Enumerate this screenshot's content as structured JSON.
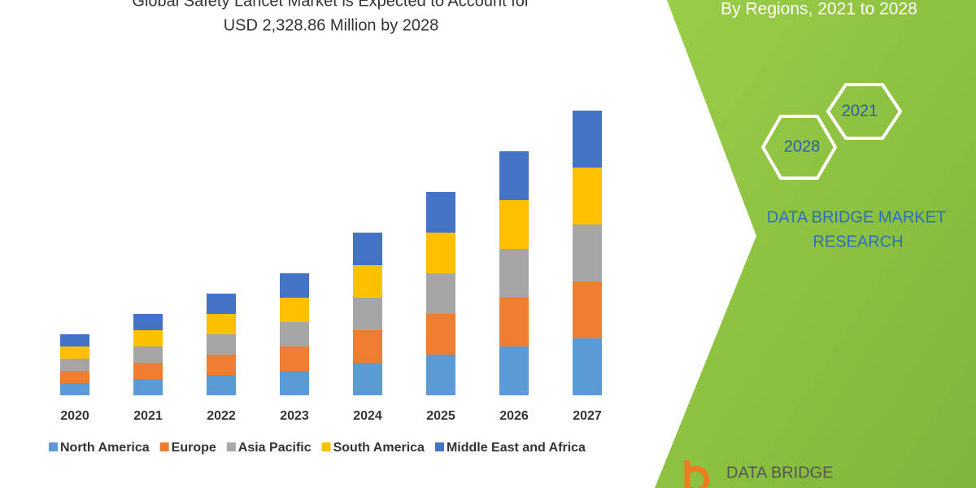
{
  "chart_data": {
    "type": "stacked_bar",
    "title_lines": [
      "Global Safety Lancet Market is Expected to Account for",
      "USD 2,328.86 Million by 2028"
    ],
    "categories": [
      "2020",
      "2021",
      "2022",
      "2023",
      "2024",
      "2025",
      "2026",
      "2027"
    ],
    "series": [
      {
        "name": "North America",
        "color": "#5b9bd5",
        "values": [
          15,
          20,
          25,
          30,
          40,
          50,
          60,
          70
        ]
      },
      {
        "name": "Europe",
        "color": "#ed7d31",
        "values": [
          15,
          20,
          25,
          30,
          40,
          50,
          60,
          70
        ]
      },
      {
        "name": "Asia Pacific",
        "color": "#a5a5a5",
        "values": [
          15,
          20,
          25,
          30,
          40,
          50,
          60,
          70
        ]
      },
      {
        "name": "South America",
        "color": "#ffc000",
        "values": [
          15,
          20,
          25,
          30,
          40,
          50,
          60,
          70
        ]
      },
      {
        "name": "Middle East and Africa",
        "color": "#4472c4",
        "values": [
          15,
          20,
          25,
          30,
          40,
          50,
          60,
          70
        ]
      }
    ],
    "legend": "bottom"
  },
  "side_panel": {
    "subtitle": "By Regions, 2021 to 2028",
    "hex_labels": [
      "2021",
      "2028"
    ],
    "brand": [
      "DATA BRIDGE MARKET",
      "RESEARCH"
    ],
    "logo_text": "DATA BRIDGE"
  }
}
